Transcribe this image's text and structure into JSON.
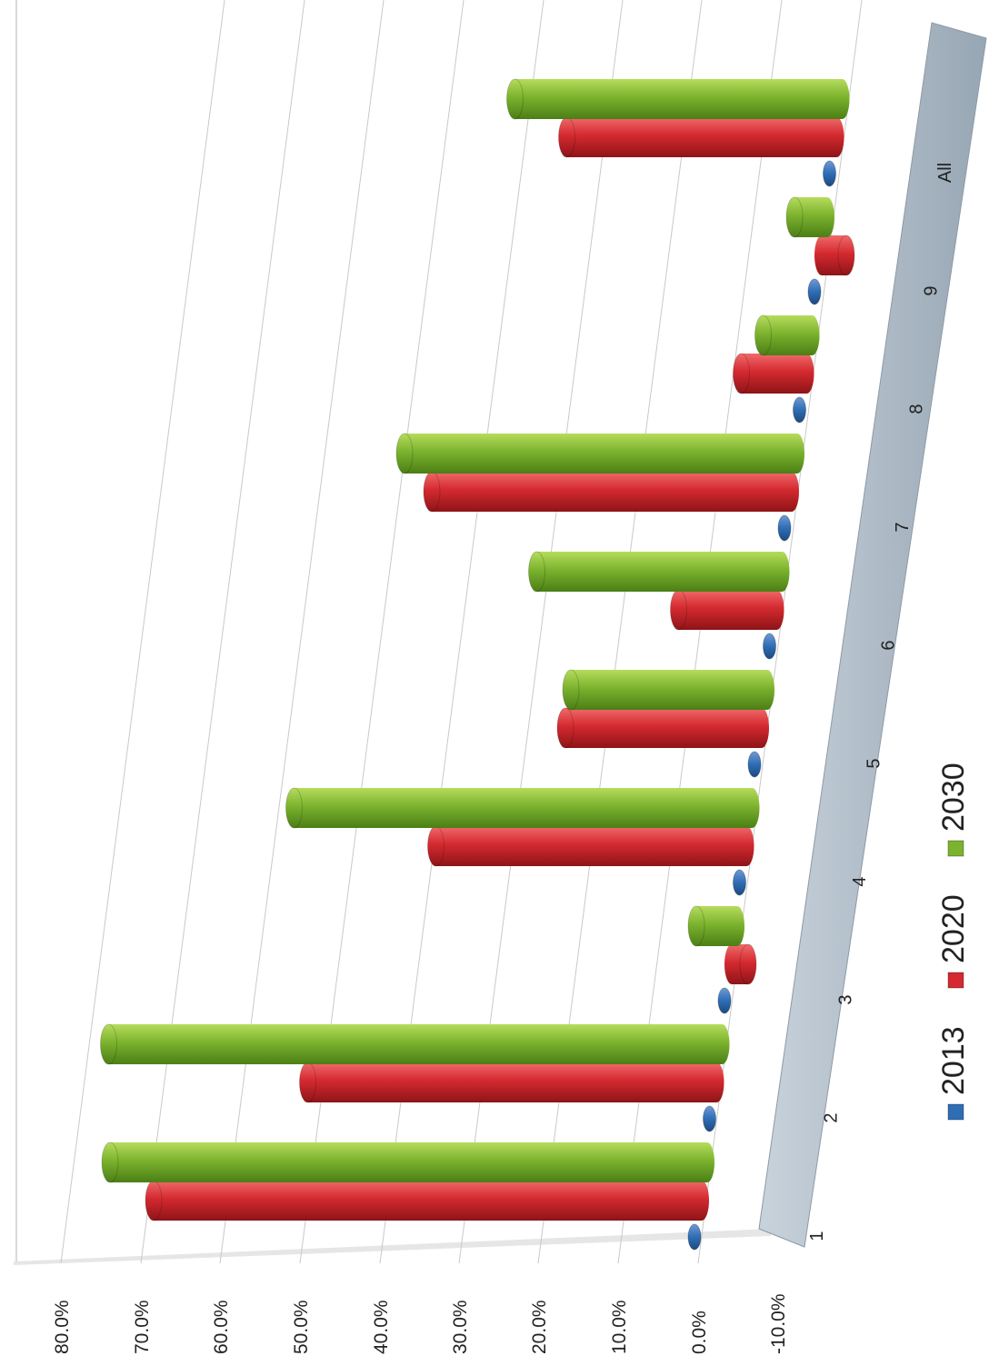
{
  "chart_data": {
    "type": "bar",
    "variant": "3d-cylinder",
    "orientation": "rotated-90",
    "title": "",
    "xlabel": "",
    "ylabel": "",
    "categories": [
      "1",
      "2",
      "3",
      "4",
      "5",
      "6",
      "7",
      "8",
      "9",
      "All"
    ],
    "y_ticks": [
      "-10.0%",
      "0.0%",
      "10.0%",
      "20.0%",
      "30.0%",
      "40.0%",
      "50.0%",
      "60.0%",
      "70.0%",
      "80.0%"
    ],
    "ylim": [
      -10,
      80
    ],
    "unit": "%",
    "grid": true,
    "legend_position": "bottom",
    "series": [
      {
        "name": "2013",
        "color": "#2f6db5",
        "values": [
          0,
          0,
          0,
          0,
          0,
          0,
          0,
          0,
          0,
          0
        ]
      },
      {
        "name": "2020",
        "color": "#d42a30",
        "values": [
          67,
          50,
          -2,
          38,
          24,
          12,
          44,
          8,
          -3,
          33
        ]
      },
      {
        "name": "2030",
        "color": "#7cb32e",
        "values": [
          73,
          75,
          5,
          56,
          24,
          30,
          48,
          6,
          4,
          40
        ]
      }
    ]
  }
}
